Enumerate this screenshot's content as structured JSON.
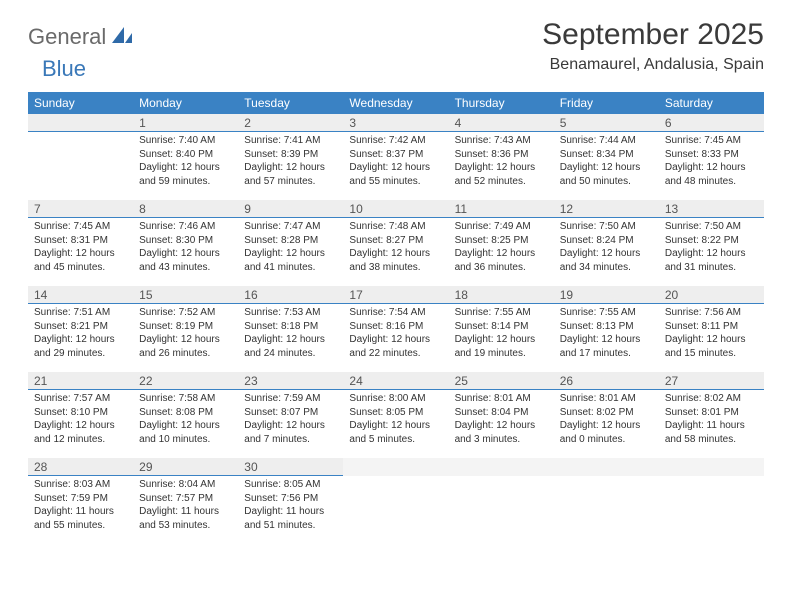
{
  "logo": {
    "text1": "General",
    "text2": "Blue"
  },
  "title": "September 2025",
  "location": "Benamaurel, Andalusia, Spain",
  "colors": {
    "header_bg": "#3a82c4",
    "header_fg": "#ffffff",
    "strip_bg": "#eeeeee",
    "strip_border": "#3a82c4",
    "body_bg": "#ffffff",
    "text": "#333333",
    "logo_gray": "#6a6a6a",
    "logo_blue": "#3a78b8"
  },
  "weekdays": [
    "Sunday",
    "Monday",
    "Tuesday",
    "Wednesday",
    "Thursday",
    "Friday",
    "Saturday"
  ],
  "weeks": [
    [
      null,
      {
        "n": "1",
        "sr": "7:40 AM",
        "ss": "8:40 PM",
        "dl": "12 hours and 59 minutes."
      },
      {
        "n": "2",
        "sr": "7:41 AM",
        "ss": "8:39 PM",
        "dl": "12 hours and 57 minutes."
      },
      {
        "n": "3",
        "sr": "7:42 AM",
        "ss": "8:37 PM",
        "dl": "12 hours and 55 minutes."
      },
      {
        "n": "4",
        "sr": "7:43 AM",
        "ss": "8:36 PM",
        "dl": "12 hours and 52 minutes."
      },
      {
        "n": "5",
        "sr": "7:44 AM",
        "ss": "8:34 PM",
        "dl": "12 hours and 50 minutes."
      },
      {
        "n": "6",
        "sr": "7:45 AM",
        "ss": "8:33 PM",
        "dl": "12 hours and 48 minutes."
      }
    ],
    [
      {
        "n": "7",
        "sr": "7:45 AM",
        "ss": "8:31 PM",
        "dl": "12 hours and 45 minutes."
      },
      {
        "n": "8",
        "sr": "7:46 AM",
        "ss": "8:30 PM",
        "dl": "12 hours and 43 minutes."
      },
      {
        "n": "9",
        "sr": "7:47 AM",
        "ss": "8:28 PM",
        "dl": "12 hours and 41 minutes."
      },
      {
        "n": "10",
        "sr": "7:48 AM",
        "ss": "8:27 PM",
        "dl": "12 hours and 38 minutes."
      },
      {
        "n": "11",
        "sr": "7:49 AM",
        "ss": "8:25 PM",
        "dl": "12 hours and 36 minutes."
      },
      {
        "n": "12",
        "sr": "7:50 AM",
        "ss": "8:24 PM",
        "dl": "12 hours and 34 minutes."
      },
      {
        "n": "13",
        "sr": "7:50 AM",
        "ss": "8:22 PM",
        "dl": "12 hours and 31 minutes."
      }
    ],
    [
      {
        "n": "14",
        "sr": "7:51 AM",
        "ss": "8:21 PM",
        "dl": "12 hours and 29 minutes."
      },
      {
        "n": "15",
        "sr": "7:52 AM",
        "ss": "8:19 PM",
        "dl": "12 hours and 26 minutes."
      },
      {
        "n": "16",
        "sr": "7:53 AM",
        "ss": "8:18 PM",
        "dl": "12 hours and 24 minutes."
      },
      {
        "n": "17",
        "sr": "7:54 AM",
        "ss": "8:16 PM",
        "dl": "12 hours and 22 minutes."
      },
      {
        "n": "18",
        "sr": "7:55 AM",
        "ss": "8:14 PM",
        "dl": "12 hours and 19 minutes."
      },
      {
        "n": "19",
        "sr": "7:55 AM",
        "ss": "8:13 PM",
        "dl": "12 hours and 17 minutes."
      },
      {
        "n": "20",
        "sr": "7:56 AM",
        "ss": "8:11 PM",
        "dl": "12 hours and 15 minutes."
      }
    ],
    [
      {
        "n": "21",
        "sr": "7:57 AM",
        "ss": "8:10 PM",
        "dl": "12 hours and 12 minutes."
      },
      {
        "n": "22",
        "sr": "7:58 AM",
        "ss": "8:08 PM",
        "dl": "12 hours and 10 minutes."
      },
      {
        "n": "23",
        "sr": "7:59 AM",
        "ss": "8:07 PM",
        "dl": "12 hours and 7 minutes."
      },
      {
        "n": "24",
        "sr": "8:00 AM",
        "ss": "8:05 PM",
        "dl": "12 hours and 5 minutes."
      },
      {
        "n": "25",
        "sr": "8:01 AM",
        "ss": "8:04 PM",
        "dl": "12 hours and 3 minutes."
      },
      {
        "n": "26",
        "sr": "8:01 AM",
        "ss": "8:02 PM",
        "dl": "12 hours and 0 minutes."
      },
      {
        "n": "27",
        "sr": "8:02 AM",
        "ss": "8:01 PM",
        "dl": "11 hours and 58 minutes."
      }
    ],
    [
      {
        "n": "28",
        "sr": "8:03 AM",
        "ss": "7:59 PM",
        "dl": "11 hours and 55 minutes."
      },
      {
        "n": "29",
        "sr": "8:04 AM",
        "ss": "7:57 PM",
        "dl": "11 hours and 53 minutes."
      },
      {
        "n": "30",
        "sr": "8:05 AM",
        "ss": "7:56 PM",
        "dl": "11 hours and 51 minutes."
      },
      null,
      null,
      null,
      null
    ]
  ],
  "labels": {
    "sunrise": "Sunrise:",
    "sunset": "Sunset:",
    "daylight": "Daylight:"
  }
}
